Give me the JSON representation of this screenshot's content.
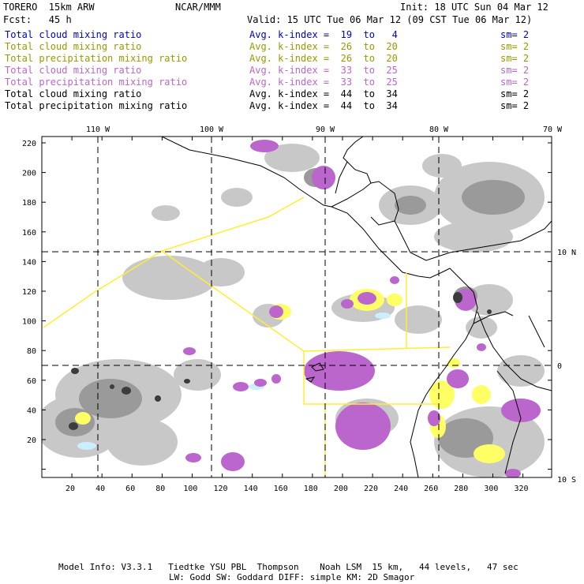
{
  "header": {
    "model_name": "TORERO  15km ARW",
    "org": "NCAR/MMM",
    "init": "Init: 18 UTC Sun 04 Mar 12",
    "fcst": "Fcst:   45 h",
    "valid": "Valid: 15 UTC Tue 06 Mar 12 (09 CST Tue 06 Mar 12)"
  },
  "legend": [
    {
      "field": "Total cloud mixing ratio",
      "kindex": "Avg. k-index =  19  to   4",
      "sm": "sm= 2",
      "color": "#0000cc"
    },
    {
      "field": "Total cloud mixing ratio",
      "kindex": "Avg. k-index =  26  to  20",
      "sm": "sm= 2",
      "color": "#999900"
    },
    {
      "field": "Total precipitation mixing ratio",
      "kindex": "Avg. k-index =  26  to  20",
      "sm": "sm= 2",
      "color": "#999900"
    },
    {
      "field": "Total cloud mixing ratio",
      "kindex": "Avg. k-index =  33  to  25",
      "sm": "sm= 2",
      "color": "#bb66cc"
    },
    {
      "field": "Total precipitation mixing ratio",
      "kindex": "Avg. k-index =  33  to  25",
      "sm": "sm= 2",
      "color": "#bb66cc"
    },
    {
      "field": "Total cloud mixing ratio",
      "kindex": "Avg. k-index =  44  to  34",
      "sm": "sm= 2",
      "color": "#000000"
    },
    {
      "field": "Total precipitation mixing ratio",
      "kindex": "Avg. k-index =  44  to  34",
      "sm": "sm= 2",
      "color": "#000000"
    }
  ],
  "axes": {
    "top_lon_labels": [
      "110 W",
      "100 W",
      "90 W",
      "80 W",
      "70 W"
    ],
    "right_lat_labels": [
      "10 N",
      "0",
      "10 S"
    ],
    "left_grid_labels": [
      "220",
      "200",
      "180",
      "160",
      "140",
      "120",
      "100",
      "80",
      "60",
      "40",
      "20"
    ],
    "bottom_grid_labels": [
      "20",
      "40",
      "60",
      "80",
      "100",
      "120",
      "140",
      "160",
      "180",
      "200",
      "220",
      "240",
      "260",
      "280",
      "300",
      "320"
    ]
  },
  "colors": {
    "light_gray": "#c8c8c8",
    "mid_gray": "#9a9a9a",
    "dark_gray": "#3c3c3c",
    "purple": "#bb66cc",
    "yellow": "#ffff66",
    "lightblue": "#cceeff",
    "domain_line": "#ffee33"
  },
  "footer": {
    "line1": "Model Info: V3.3.1   Tiedtke YSU PBL  Thompson    Noah LSM  15 km,   44 levels,   47 sec",
    "line2": "LW: Godd SW: Goddard DIFF: simple KM: 2D Smagor"
  }
}
